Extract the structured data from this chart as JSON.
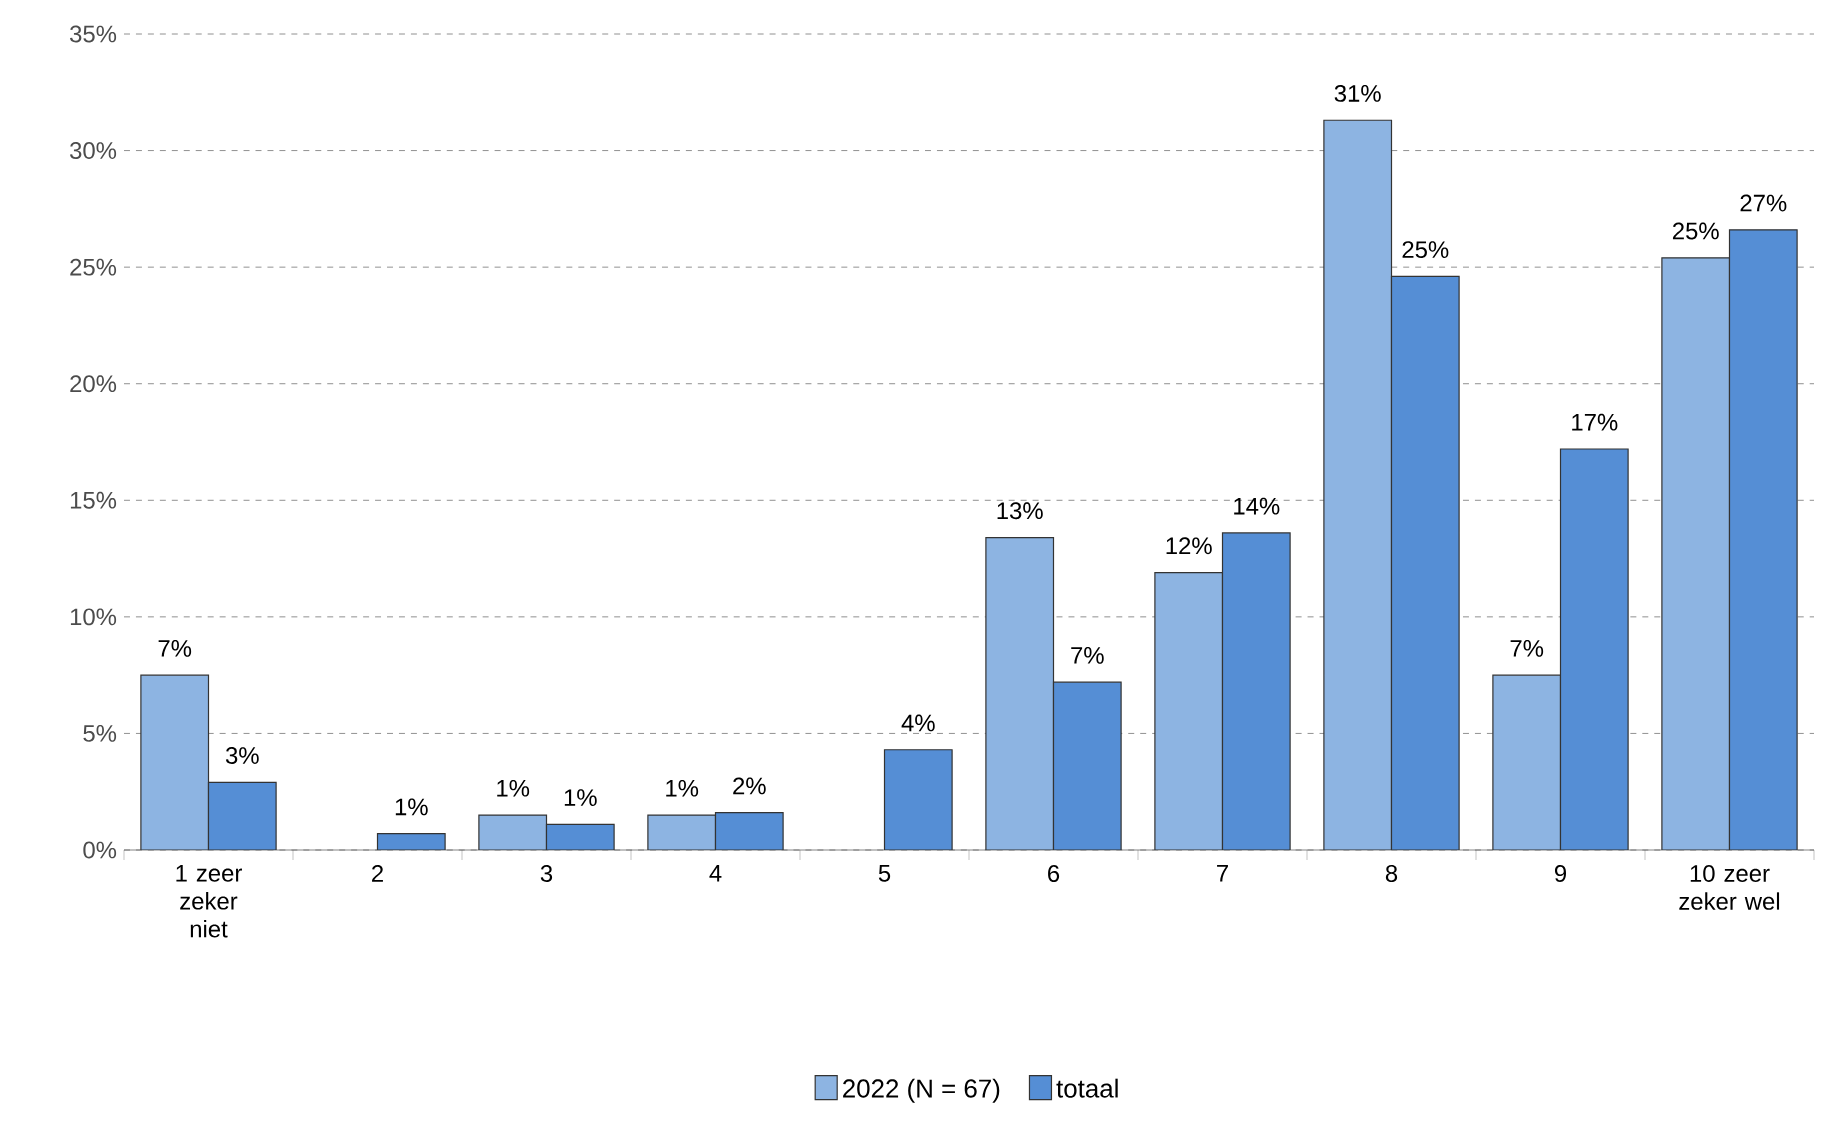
{
  "chart_data": {
    "type": "bar",
    "categories": [
      "1 zeer zeker niet",
      "2",
      "3",
      "4",
      "5",
      "6",
      "7",
      "8",
      "9",
      "10 zeer zeker wel"
    ],
    "series": [
      {
        "name": "2022 (N = 67)",
        "color": "#8db4e2",
        "values": [
          7.5,
          null,
          1.5,
          1.5,
          null,
          13.4,
          11.9,
          31.3,
          7.5,
          25.4
        ],
        "value_labels": [
          "7%",
          null,
          "1%",
          "1%",
          null,
          "13%",
          "12%",
          "31%",
          "7%",
          "25%"
        ]
      },
      {
        "name": "totaal",
        "color": "#558ed5",
        "values": [
          2.9,
          0.7,
          1.1,
          1.6,
          4.3,
          7.2,
          13.6,
          24.6,
          17.2,
          26.6
        ],
        "value_labels": [
          "3%",
          "1%",
          "1%",
          "2%",
          "4%",
          "7%",
          "14%",
          "25%",
          "17%",
          "27%"
        ]
      }
    ],
    "ylim": [
      0,
      35
    ],
    "yticks": [
      {
        "value": 0,
        "label": "0%"
      },
      {
        "value": 5,
        "label": "5%"
      },
      {
        "value": 10,
        "label": "10%"
      },
      {
        "value": 15,
        "label": "15%"
      },
      {
        "value": 20,
        "label": "20%"
      },
      {
        "value": 25,
        "label": "25%"
      },
      {
        "value": 30,
        "label": "30%"
      },
      {
        "value": 35,
        "label": "35%"
      }
    ],
    "grid": "y",
    "legend": "bottom"
  }
}
